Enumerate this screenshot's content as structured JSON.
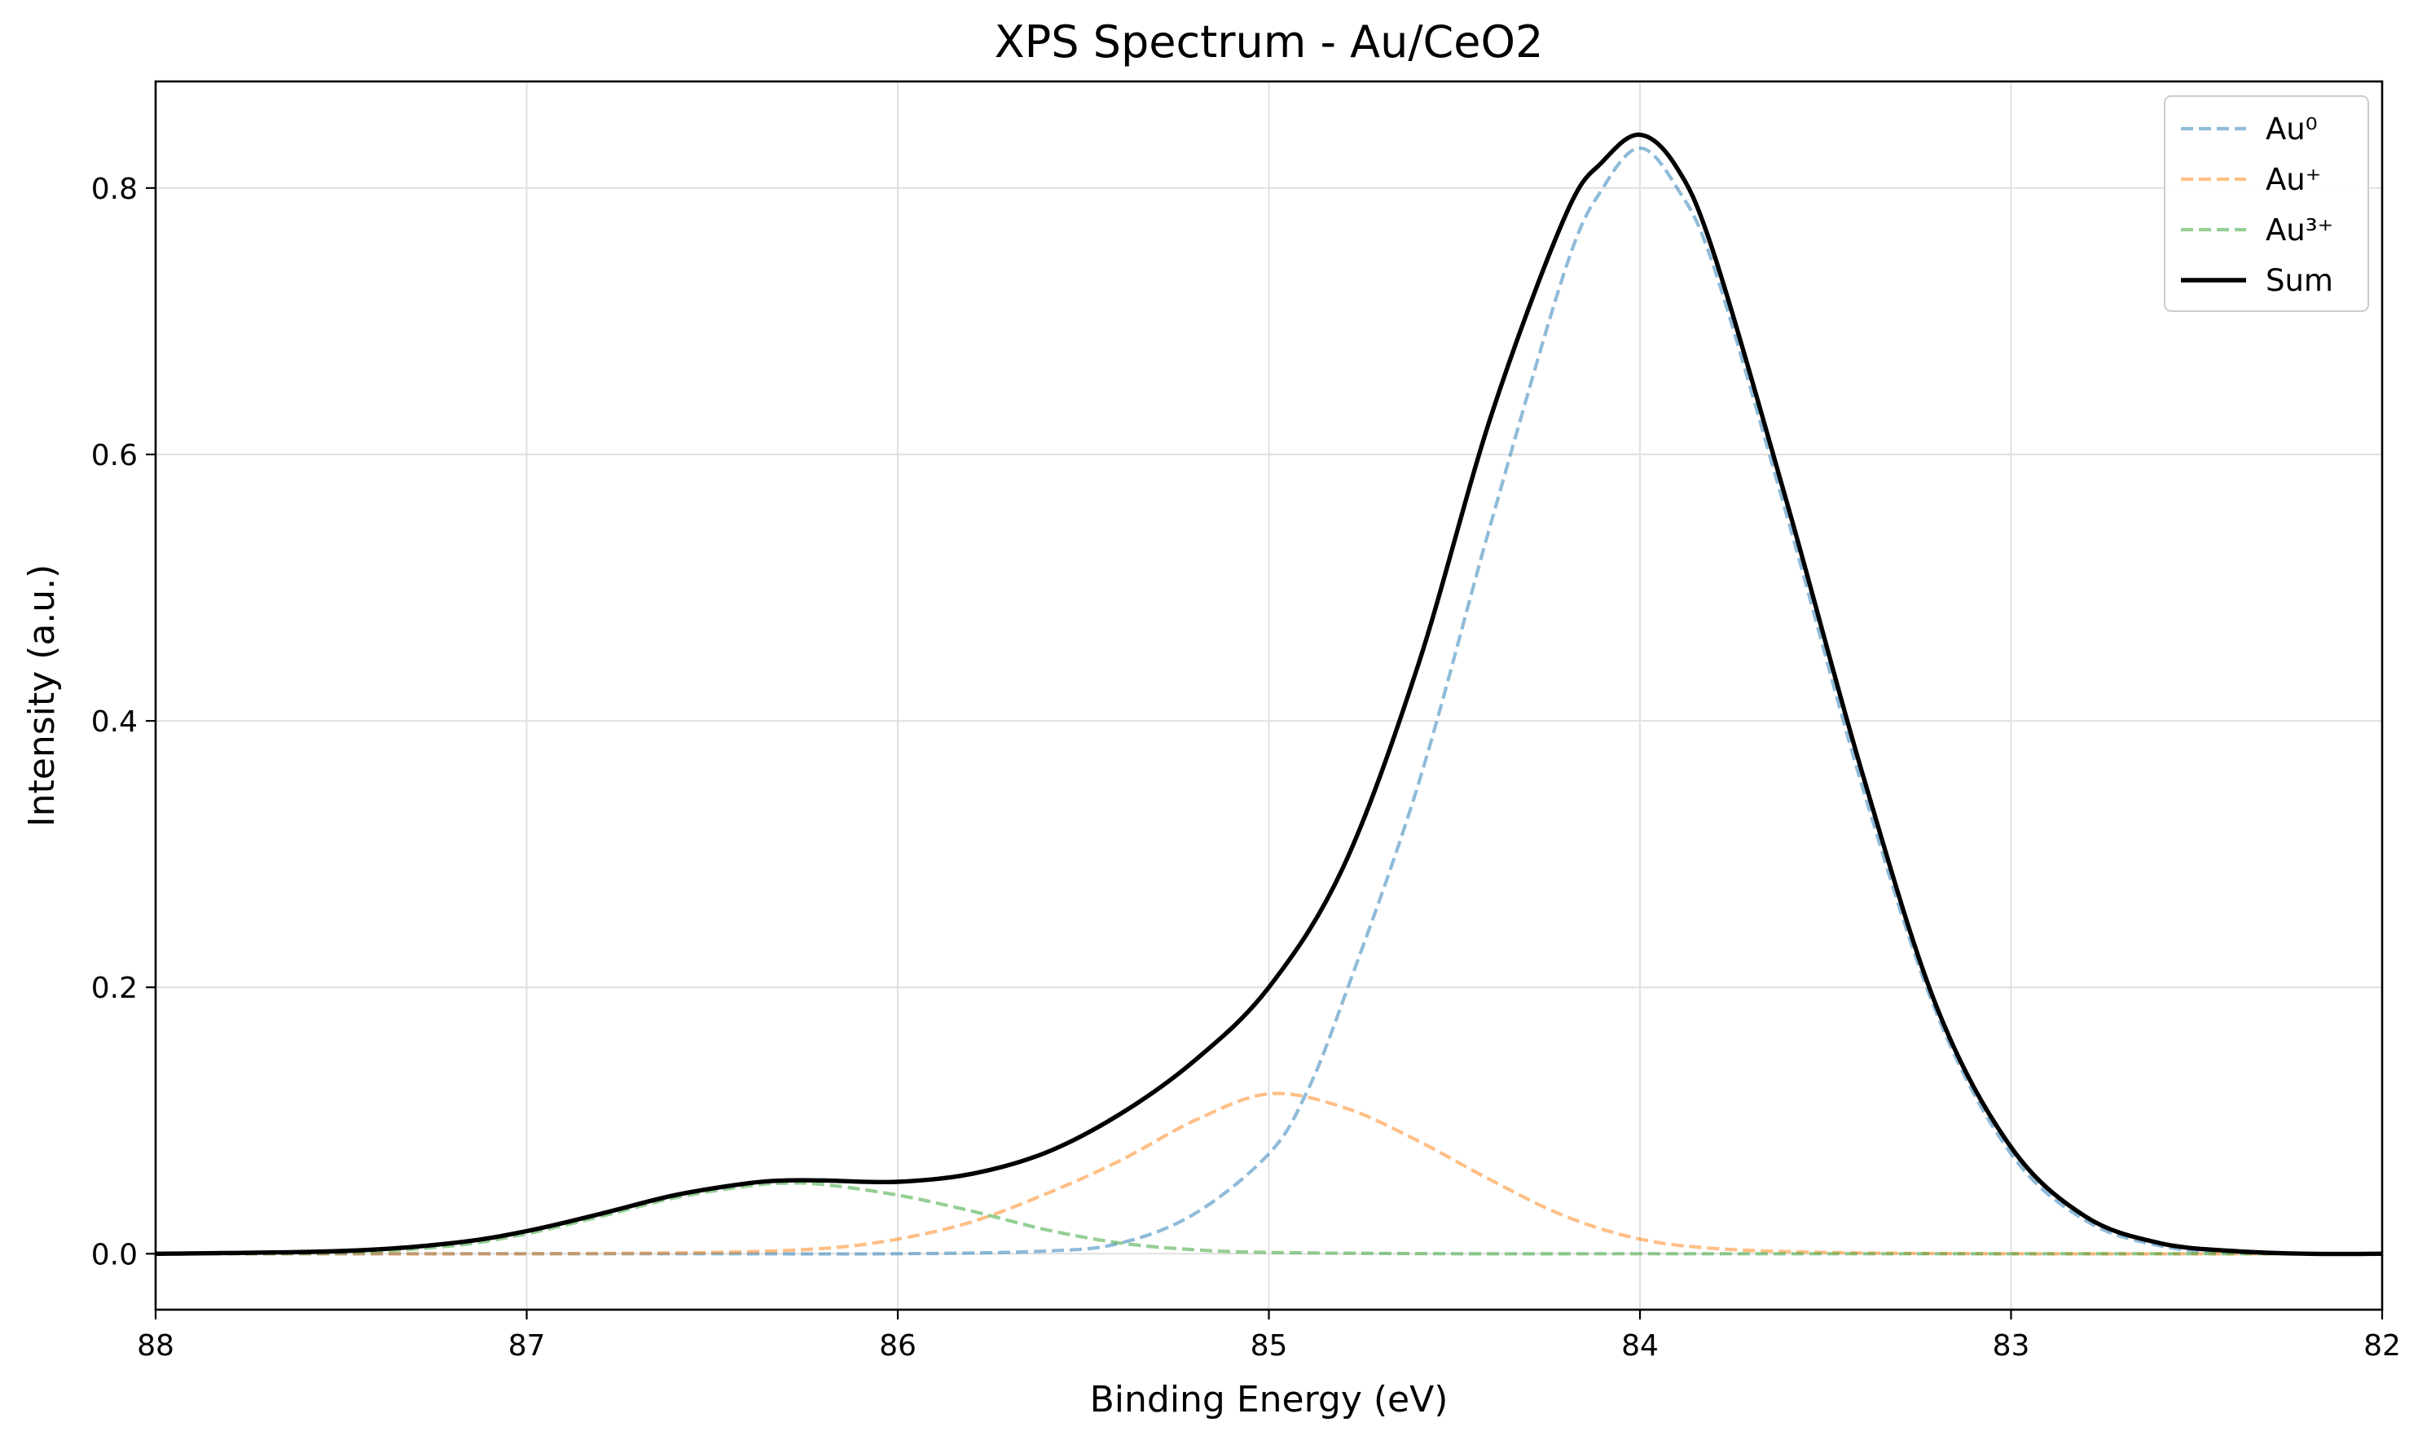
{
  "chart_data": {
    "type": "line",
    "title": "XPS Spectrum - Au/CeO2",
    "xlabel": "Binding Energy (eV)",
    "ylabel": "Intensity (a.u.)",
    "xlim": [
      88,
      82
    ],
    "x_reversed": true,
    "ylim": [
      -0.042,
      0.88
    ],
    "x_ticks": [
      {
        "value": 88,
        "label": "88"
      },
      {
        "value": 87,
        "label": "87"
      },
      {
        "value": 86,
        "label": "86"
      },
      {
        "value": 85,
        "label": "85"
      },
      {
        "value": 84,
        "label": "84"
      },
      {
        "value": 83,
        "label": "83"
      },
      {
        "value": 82,
        "label": "82"
      }
    ],
    "y_ticks": [
      {
        "value": 0.0,
        "label": "0.0"
      },
      {
        "value": 0.2,
        "label": "0.2"
      },
      {
        "value": 0.4,
        "label": "0.4"
      },
      {
        "value": 0.6,
        "label": "0.6"
      },
      {
        "value": 0.8,
        "label": "0.8"
      }
    ],
    "grid": true,
    "legend_position": "top-right",
    "series": [
      {
        "name": "Au⁰",
        "color": "#1f77b4",
        "style": "dashed",
        "x": [
          88.0,
          87.0,
          86.5,
          86.0,
          85.6,
          85.4,
          85.2,
          85.0,
          84.9,
          84.8,
          84.6,
          84.4,
          84.2,
          84.1,
          84.0,
          83.9,
          83.8,
          83.6,
          83.4,
          83.2,
          83.0,
          82.8,
          82.6,
          82.4,
          82.0
        ],
        "y": [
          0.0,
          0.0,
          0.0,
          0.0,
          0.002,
          0.008,
          0.03,
          0.075,
          0.12,
          0.19,
          0.35,
          0.55,
          0.74,
          0.8,
          0.83,
          0.8,
          0.74,
          0.55,
          0.35,
          0.18,
          0.075,
          0.025,
          0.006,
          0.001,
          0.0
        ]
      },
      {
        "name": "Au⁺",
        "color": "#ff7f0e",
        "style": "dashed",
        "x": [
          88.0,
          87.5,
          87.0,
          86.5,
          86.2,
          86.0,
          85.8,
          85.6,
          85.4,
          85.2,
          85.0,
          84.8,
          84.6,
          84.4,
          84.2,
          84.0,
          83.8,
          83.5,
          83.0,
          82.0
        ],
        "y": [
          0.0,
          0.0,
          0.0,
          0.001,
          0.004,
          0.011,
          0.024,
          0.045,
          0.07,
          0.1,
          0.12,
          0.11,
          0.085,
          0.055,
          0.028,
          0.011,
          0.004,
          0.001,
          0.0,
          0.0
        ]
      },
      {
        "name": "Au³⁺",
        "color": "#2ca02c",
        "style": "dashed",
        "x": [
          88.0,
          87.5,
          87.2,
          87.0,
          86.8,
          86.6,
          86.4,
          86.3,
          86.2,
          86.0,
          85.8,
          85.6,
          85.4,
          85.2,
          85.0,
          84.5,
          84.0,
          83.0,
          82.0
        ],
        "y": [
          0.0,
          0.001,
          0.006,
          0.015,
          0.028,
          0.042,
          0.051,
          0.053,
          0.052,
          0.044,
          0.032,
          0.018,
          0.008,
          0.003,
          0.001,
          0.0,
          0.0,
          0.0,
          0.0
        ]
      },
      {
        "name": "Sum",
        "color": "#000000",
        "style": "solid",
        "x": [
          88.0,
          87.5,
          87.2,
          87.0,
          86.8,
          86.6,
          86.4,
          86.3,
          86.2,
          86.0,
          85.8,
          85.6,
          85.4,
          85.2,
          85.0,
          84.8,
          84.6,
          84.4,
          84.2,
          84.1,
          84.0,
          83.9,
          83.8,
          83.6,
          83.4,
          83.2,
          83.0,
          82.8,
          82.6,
          82.4,
          82.2,
          82.0
        ],
        "y": [
          0.0,
          0.002,
          0.008,
          0.017,
          0.03,
          0.044,
          0.053,
          0.055,
          0.055,
          0.054,
          0.06,
          0.076,
          0.105,
          0.145,
          0.2,
          0.29,
          0.44,
          0.63,
          0.78,
          0.82,
          0.84,
          0.815,
          0.75,
          0.56,
          0.36,
          0.185,
          0.08,
          0.028,
          0.008,
          0.002,
          0.0,
          0.0
        ]
      }
    ]
  }
}
